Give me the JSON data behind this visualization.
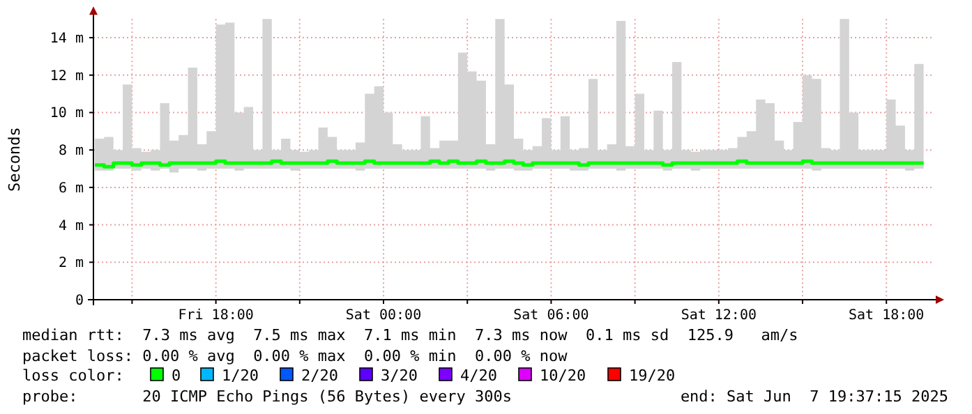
{
  "chart_data": {
    "type": "line",
    "ylabel": "Seconds",
    "xlim": [
      "2025-06-06T13:37",
      "2025-06-07T19:37"
    ],
    "ylim": [
      0,
      15
    ],
    "xticks": [
      {
        "value": "2025-06-06T15:00",
        "label": null
      },
      {
        "value": "2025-06-06T18:00",
        "label": "Fri 18:00"
      },
      {
        "value": "2025-06-06T21:00",
        "label": null
      },
      {
        "value": "2025-06-07T00:00",
        "label": "Sat 00:00"
      },
      {
        "value": "2025-06-07T03:00",
        "label": null
      },
      {
        "value": "2025-06-07T06:00",
        "label": "Sat 06:00"
      },
      {
        "value": "2025-06-07T09:00",
        "label": null
      },
      {
        "value": "2025-06-07T12:00",
        "label": "Sat 12:00"
      },
      {
        "value": "2025-06-07T15:00",
        "label": null
      },
      {
        "value": "2025-06-07T18:00",
        "label": "Sat 18:00"
      }
    ],
    "yticks": [
      0,
      {
        "value": 2,
        "label": "2 m"
      },
      {
        "value": 4,
        "label": "4 m"
      },
      {
        "value": 6,
        "label": "6 m"
      },
      {
        "value": 8,
        "label": "8 m"
      },
      {
        "value": 10,
        "label": "10 m"
      },
      {
        "value": 12,
        "label": "12 m"
      },
      {
        "value": 14,
        "label": "14 m"
      }
    ],
    "grid": true,
    "legend": "bottom",
    "legend_title": "loss color:",
    "x": [
      "2025-06-06T13:40",
      "2025-06-06T14:00",
      "2025-06-06T14:20",
      "2025-06-06T14:40",
      "2025-06-06T15:00",
      "2025-06-06T15:20",
      "2025-06-06T15:40",
      "2025-06-06T16:00",
      "2025-06-06T16:20",
      "2025-06-06T16:40",
      "2025-06-06T17:00",
      "2025-06-06T17:20",
      "2025-06-06T17:40",
      "2025-06-06T18:00",
      "2025-06-06T18:20",
      "2025-06-06T18:40",
      "2025-06-06T19:00",
      "2025-06-06T19:20",
      "2025-06-06T19:40",
      "2025-06-06T20:00",
      "2025-06-06T20:20",
      "2025-06-06T20:40",
      "2025-06-06T21:00",
      "2025-06-06T21:20",
      "2025-06-06T21:40",
      "2025-06-06T22:00",
      "2025-06-06T22:20",
      "2025-06-06T22:40",
      "2025-06-06T23:00",
      "2025-06-06T23:20",
      "2025-06-06T23:40",
      "2025-06-07T00:00",
      "2025-06-07T00:20",
      "2025-06-07T00:40",
      "2025-06-07T01:00",
      "2025-06-07T01:20",
      "2025-06-07T01:40",
      "2025-06-07T02:00",
      "2025-06-07T02:20",
      "2025-06-07T02:40",
      "2025-06-07T03:00",
      "2025-06-07T03:20",
      "2025-06-07T03:40",
      "2025-06-07T04:00",
      "2025-06-07T04:20",
      "2025-06-07T04:40",
      "2025-06-07T05:00",
      "2025-06-07T05:20",
      "2025-06-07T05:40",
      "2025-06-07T06:00",
      "2025-06-07T06:20",
      "2025-06-07T06:40",
      "2025-06-07T07:00",
      "2025-06-07T07:20",
      "2025-06-07T07:40",
      "2025-06-07T08:00",
      "2025-06-07T08:20",
      "2025-06-07T08:40",
      "2025-06-07T09:00",
      "2025-06-07T09:20",
      "2025-06-07T09:40",
      "2025-06-07T10:00",
      "2025-06-07T10:20",
      "2025-06-07T10:40",
      "2025-06-07T11:00",
      "2025-06-07T11:20",
      "2025-06-07T11:40",
      "2025-06-07T12:00",
      "2025-06-07T12:20",
      "2025-06-07T12:40",
      "2025-06-07T13:00",
      "2025-06-07T13:20",
      "2025-06-07T13:40",
      "2025-06-07T14:00",
      "2025-06-07T14:20",
      "2025-06-07T14:40",
      "2025-06-07T15:00",
      "2025-06-07T15:20",
      "2025-06-07T15:40",
      "2025-06-07T16:00",
      "2025-06-07T16:20",
      "2025-06-07T16:40",
      "2025-06-07T17:00",
      "2025-06-07T17:20",
      "2025-06-07T17:40",
      "2025-06-07T18:00",
      "2025-06-07T18:20",
      "2025-06-07T18:40",
      "2025-06-07T19:00",
      "2025-06-07T19:20"
    ],
    "series": [
      {
        "name": "0",
        "color": "#00ff00",
        "values": [
          7.2,
          7.1,
          7.3,
          7.3,
          7.2,
          7.3,
          7.3,
          7.2,
          7.3,
          7.3,
          7.3,
          7.3,
          7.3,
          7.4,
          7.3,
          7.3,
          7.3,
          7.3,
          7.3,
          7.4,
          7.3,
          7.3,
          7.3,
          7.3,
          7.3,
          7.4,
          7.3,
          7.3,
          7.3,
          7.4,
          7.3,
          7.3,
          7.3,
          7.3,
          7.3,
          7.3,
          7.4,
          7.3,
          7.4,
          7.3,
          7.3,
          7.4,
          7.3,
          7.3,
          7.4,
          7.3,
          7.2,
          7.3,
          7.3,
          7.3,
          7.3,
          7.3,
          7.2,
          7.3,
          7.3,
          7.3,
          7.3,
          7.3,
          7.3,
          7.3,
          7.3,
          7.2,
          7.3,
          7.3,
          7.3,
          7.3,
          7.3,
          7.3,
          7.3,
          7.4,
          7.3,
          7.3,
          7.3,
          7.3,
          7.3,
          7.3,
          7.4,
          7.3,
          7.3,
          7.3,
          7.3,
          7.3,
          7.3,
          7.3,
          7.3,
          7.3,
          7.3,
          7.3,
          7.3,
          7.3
        ],
        "lower": [
          6.9,
          6.9,
          7.0,
          7.0,
          6.9,
          7.0,
          6.9,
          7.0,
          6.8,
          7.0,
          7.0,
          6.9,
          7.0,
          7.0,
          7.0,
          6.9,
          7.0,
          7.0,
          7.0,
          7.0,
          7.0,
          6.9,
          7.0,
          7.0,
          7.0,
          7.0,
          7.0,
          7.0,
          6.9,
          7.0,
          7.0,
          7.0,
          7.0,
          7.0,
          7.0,
          7.0,
          7.0,
          7.0,
          7.0,
          7.0,
          7.0,
          7.0,
          6.9,
          7.0,
          7.0,
          6.9,
          6.9,
          7.0,
          7.0,
          7.0,
          7.0,
          6.9,
          6.9,
          7.0,
          7.0,
          7.0,
          6.9,
          7.0,
          7.0,
          7.0,
          7.0,
          6.9,
          7.0,
          7.0,
          6.9,
          7.0,
          7.0,
          7.0,
          7.0,
          7.0,
          7.0,
          7.0,
          7.0,
          7.0,
          7.0,
          7.0,
          7.0,
          6.9,
          7.0,
          7.0,
          7.0,
          7.0,
          7.0,
          7.0,
          7.0,
          7.0,
          7.0,
          6.9,
          7.0,
          6.9
        ],
        "upper": [
          8.6,
          8.7,
          8.0,
          11.5,
          8.1,
          7.9,
          8.0,
          10.5,
          8.5,
          8.8,
          12.4,
          8.3,
          9.0,
          14.7,
          14.8,
          10.0,
          10.3,
          8.0,
          15.0,
          8.0,
          8.6,
          8.0,
          7.9,
          8.0,
          9.2,
          8.7,
          8.0,
          8.0,
          8.4,
          11.0,
          11.4,
          10.0,
          8.3,
          8.0,
          8.0,
          9.8,
          8.1,
          8.5,
          8.5,
          13.2,
          12.2,
          11.7,
          8.3,
          15.0,
          11.5,
          8.6,
          8.0,
          8.2,
          9.7,
          8.0,
          9.8,
          8.0,
          8.1,
          11.8,
          8.0,
          8.3,
          14.9,
          8.2,
          11.0,
          8.0,
          10.1,
          8.0,
          12.7,
          8.0,
          7.9,
          8.0,
          8.0,
          8.0,
          8.1,
          8.7,
          9.0,
          10.7,
          10.5,
          8.5,
          8.0,
          9.5,
          12.0,
          11.8,
          8.1,
          8.0,
          15.0,
          10.0,
          8.0,
          8.0,
          8.0,
          10.7,
          9.3,
          8.0,
          12.6,
          9.7
        ]
      },
      {
        "name": "1/20",
        "color": "#00b8ff",
        "values": [
          null,
          null,
          null,
          null,
          null,
          null,
          null,
          null,
          null,
          null,
          null,
          null,
          null,
          null,
          null,
          null,
          null,
          null,
          null,
          null,
          null,
          null,
          null,
          null,
          null,
          null,
          null,
          null,
          null,
          null,
          null,
          null,
          null,
          null,
          null,
          null,
          null,
          null,
          null,
          null,
          null,
          null,
          null,
          null,
          null,
          null,
          null,
          null,
          null,
          null,
          null,
          null,
          null,
          null,
          null,
          null,
          null,
          null,
          null,
          null,
          null,
          null,
          null,
          null,
          null,
          null,
          null,
          null,
          null,
          null,
          null,
          null,
          null,
          null,
          null,
          null,
          null,
          null,
          null,
          null,
          null,
          null,
          null,
          null,
          null,
          null,
          null,
          null,
          null,
          null
        ]
      },
      {
        "name": "2/20",
        "color": "#0059ff",
        "values": [
          null,
          null,
          null,
          null,
          null,
          null,
          null,
          null,
          null,
          null,
          null,
          null,
          null,
          null,
          null,
          null,
          null,
          null,
          null,
          null,
          null,
          null,
          null,
          null,
          null,
          null,
          null,
          null,
          null,
          null,
          null,
          null,
          null,
          null,
          null,
          null,
          null,
          null,
          null,
          null,
          null,
          null,
          null,
          null,
          null,
          null,
          null,
          null,
          null,
          null,
          null,
          null,
          null,
          null,
          null,
          null,
          null,
          null,
          null,
          null,
          null,
          null,
          null,
          null,
          null,
          null,
          null,
          null,
          null,
          null,
          null,
          null,
          null,
          null,
          null,
          null,
          null,
          null,
          null,
          null,
          null,
          null,
          null,
          null,
          null,
          null,
          null,
          null,
          null,
          null
        ]
      },
      {
        "name": "3/20",
        "color": "#5e00ff",
        "values": [
          null,
          null,
          null,
          null,
          null,
          null,
          null,
          null,
          null,
          null,
          null,
          null,
          null,
          null,
          null,
          null,
          null,
          null,
          null,
          null,
          null,
          null,
          null,
          null,
          null,
          null,
          null,
          null,
          null,
          null,
          null,
          null,
          null,
          null,
          null,
          null,
          null,
          null,
          null,
          null,
          null,
          null,
          null,
          null,
          null,
          null,
          null,
          null,
          null,
          null,
          null,
          null,
          null,
          null,
          null,
          null,
          null,
          null,
          null,
          null,
          null,
          null,
          null,
          null,
          null,
          null,
          null,
          null,
          null,
          null,
          null,
          null,
          null,
          null,
          null,
          null,
          null,
          null,
          null,
          null,
          null,
          null,
          null,
          null,
          null,
          null,
          null,
          null,
          null,
          null
        ]
      },
      {
        "name": "4/20",
        "color": "#7e00ff",
        "values": [
          null,
          null,
          null,
          null,
          null,
          null,
          null,
          null,
          null,
          null,
          null,
          null,
          null,
          null,
          null,
          null,
          null,
          null,
          null,
          null,
          null,
          null,
          null,
          null,
          null,
          null,
          null,
          null,
          null,
          null,
          null,
          null,
          null,
          null,
          null,
          null,
          null,
          null,
          null,
          null,
          null,
          null,
          null,
          null,
          null,
          null,
          null,
          null,
          null,
          null,
          null,
          null,
          null,
          null,
          null,
          null,
          null,
          null,
          null,
          null,
          null,
          null,
          null,
          null,
          null,
          null,
          null,
          null,
          null,
          null,
          null,
          null,
          null,
          null,
          null,
          null,
          null,
          null,
          null,
          null,
          null,
          null,
          null,
          null,
          null,
          null,
          null,
          null,
          null,
          null
        ]
      },
      {
        "name": "10/20",
        "color": "#dd00ff",
        "values": [
          null,
          null,
          null,
          null,
          null,
          null,
          null,
          null,
          null,
          null,
          null,
          null,
          null,
          null,
          null,
          null,
          null,
          null,
          null,
          null,
          null,
          null,
          null,
          null,
          null,
          null,
          null,
          null,
          null,
          null,
          null,
          null,
          null,
          null,
          null,
          null,
          null,
          null,
          null,
          null,
          null,
          null,
          null,
          null,
          null,
          null,
          null,
          null,
          null,
          null,
          null,
          null,
          null,
          null,
          null,
          null,
          null,
          null,
          null,
          null,
          null,
          null,
          null,
          null,
          null,
          null,
          null,
          null,
          null,
          null,
          null,
          null,
          null,
          null,
          null,
          null,
          null,
          null,
          null,
          null,
          null,
          null,
          null,
          null,
          null,
          null,
          null,
          null,
          null,
          null
        ]
      },
      {
        "name": "19/20",
        "color": "#ff0000",
        "values": [
          null,
          null,
          null,
          null,
          null,
          null,
          null,
          null,
          null,
          null,
          null,
          null,
          null,
          null,
          null,
          null,
          null,
          null,
          null,
          null,
          null,
          null,
          null,
          null,
          null,
          null,
          null,
          null,
          null,
          null,
          null,
          null,
          null,
          null,
          null,
          null,
          null,
          null,
          null,
          null,
          null,
          null,
          null,
          null,
          null,
          null,
          null,
          null,
          null,
          null,
          null,
          null,
          null,
          null,
          null,
          null,
          null,
          null,
          null,
          null,
          null,
          null,
          null,
          null,
          null,
          null,
          null,
          null,
          null,
          null,
          null,
          null,
          null,
          null,
          null,
          null,
          null,
          null,
          null,
          null,
          null,
          null,
          null,
          null,
          null,
          null,
          null,
          null,
          null,
          null
        ]
      }
    ],
    "annotations": [
      "median rtt:  7.3 ms avg  7.5 ms max  7.1 ms min  7.3 ms now  0.1 ms sd  125.9   am/s",
      "packet loss: 0.00 % avg  0.00 % max  0.00 % min  0.00 % now",
      "probe:       20 ICMP Echo Pings (56 Bytes) every 300s",
      "end: Sat Jun  7 19:37:15 2025"
    ]
  }
}
